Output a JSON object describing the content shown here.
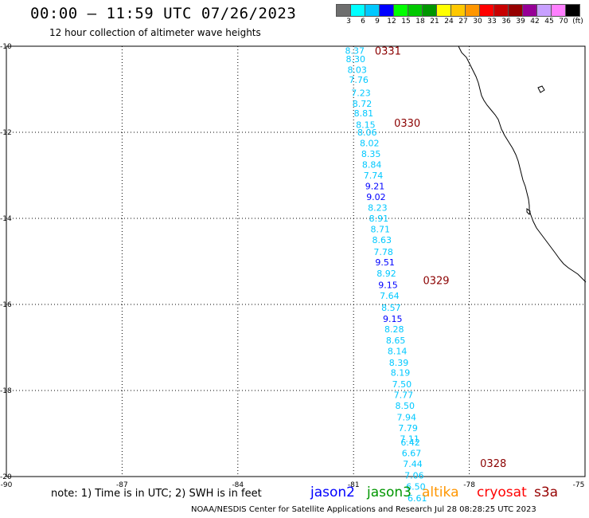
{
  "header": {
    "title": "00:00 – 11:59 UTC 07/26/2023",
    "subtitle": "12 hour collection of altimeter wave heights"
  },
  "colorbar": {
    "colors": [
      "#6e6e6e",
      "#00ffff",
      "#00c8ff",
      "#0000ff",
      "#00ff00",
      "#00c800",
      "#009600",
      "#ffff00",
      "#ffc800",
      "#ff9600",
      "#ff0000",
      "#c80000",
      "#960000",
      "#960096",
      "#c8a0ff",
      "#ff80ff",
      "#000000"
    ],
    "labels": [
      "3",
      "6",
      "9",
      "12",
      "15",
      "18",
      "21",
      "24",
      "27",
      "30",
      "33",
      "36",
      "39",
      "42",
      "45",
      "70",
      "(ft)"
    ]
  },
  "axes": {
    "y_labels": [
      "-10",
      "-12",
      "-14",
      "-16",
      "-18",
      "-20"
    ],
    "x_labels": [
      "-90",
      "-87",
      "-84",
      "-81",
      "-78",
      "-75"
    ]
  },
  "time_labels": [
    {
      "text": "0331",
      "lon": -80.45,
      "lat": -10.12
    },
    {
      "text": "0330",
      "lon": -79.95,
      "lat": -11.8
    },
    {
      "text": "0329",
      "lon": -79.2,
      "lat": -15.45
    },
    {
      "text": "0328",
      "lon": -77.72,
      "lat": -19.7
    }
  ],
  "track": [
    {
      "v": "8.37",
      "lon": -81.22,
      "lat": -10.1,
      "c": "#00c8ff"
    },
    {
      "v": "8.30",
      "lon": -81.2,
      "lat": -10.3,
      "c": "#00c8ff"
    },
    {
      "v": "8.03",
      "lon": -81.16,
      "lat": -10.55,
      "c": "#00c8ff"
    },
    {
      "v": "7.76",
      "lon": -81.12,
      "lat": -10.78,
      "c": "#00c8ff"
    },
    {
      "v": "7.23",
      "lon": -81.06,
      "lat": -11.08,
      "c": "#00c8ff"
    },
    {
      "v": "8.72",
      "lon": -81.03,
      "lat": -11.33,
      "c": "#00c8ff"
    },
    {
      "v": "8.81",
      "lon": -80.99,
      "lat": -11.56,
      "c": "#00c8ff"
    },
    {
      "v": "8.15",
      "lon": -80.94,
      "lat": -11.82,
      "c": "#00c8ff"
    },
    {
      "v": "8.06",
      "lon": -80.9,
      "lat": -12.0,
      "c": "#00c8ff"
    },
    {
      "v": "8.02",
      "lon": -80.84,
      "lat": -12.25,
      "c": "#00c8ff"
    },
    {
      "v": "8.35",
      "lon": -80.8,
      "lat": -12.5,
      "c": "#00c8ff"
    },
    {
      "v": "8.84",
      "lon": -80.78,
      "lat": -12.75,
      "c": "#00c8ff"
    },
    {
      "v": "7.74",
      "lon": -80.74,
      "lat": -13.0,
      "c": "#00c8ff"
    },
    {
      "v": "9.21",
      "lon": -80.7,
      "lat": -13.25,
      "c": "#0000ff"
    },
    {
      "v": "9.02",
      "lon": -80.67,
      "lat": -13.5,
      "c": "#0000ff"
    },
    {
      "v": "8.23",
      "lon": -80.63,
      "lat": -13.75,
      "c": "#00c8ff"
    },
    {
      "v": "8.91",
      "lon": -80.6,
      "lat": -14.0,
      "c": "#00c8ff"
    },
    {
      "v": "8.71",
      "lon": -80.56,
      "lat": -14.25,
      "c": "#00c8ff"
    },
    {
      "v": "8.63",
      "lon": -80.52,
      "lat": -14.5,
      "c": "#00c8ff"
    },
    {
      "v": "7.78",
      "lon": -80.48,
      "lat": -14.78,
      "c": "#00c8ff"
    },
    {
      "v": "9.51",
      "lon": -80.44,
      "lat": -15.02,
      "c": "#0000ff"
    },
    {
      "v": "8.92",
      "lon": -80.4,
      "lat": -15.28,
      "c": "#00c8ff"
    },
    {
      "v": "9.15",
      "lon": -80.36,
      "lat": -15.55,
      "c": "#0000ff"
    },
    {
      "v": "7.64",
      "lon": -80.32,
      "lat": -15.8,
      "c": "#00c8ff"
    },
    {
      "v": "8.57",
      "lon": -80.28,
      "lat": -16.07,
      "c": "#00c8ff"
    },
    {
      "v": "9.15",
      "lon": -80.24,
      "lat": -16.33,
      "c": "#0000ff"
    },
    {
      "v": "8.28",
      "lon": -80.2,
      "lat": -16.57,
      "c": "#00c8ff"
    },
    {
      "v": "8.65",
      "lon": -80.16,
      "lat": -16.83,
      "c": "#00c8ff"
    },
    {
      "v": "8.14",
      "lon": -80.12,
      "lat": -17.08,
      "c": "#00c8ff"
    },
    {
      "v": "8.39",
      "lon": -80.08,
      "lat": -17.35,
      "c": "#00c8ff"
    },
    {
      "v": "8.19",
      "lon": -80.04,
      "lat": -17.58,
      "c": "#00c8ff"
    },
    {
      "v": "7.50",
      "lon": -80.0,
      "lat": -17.85,
      "c": "#00c8ff"
    },
    {
      "v": "7.77",
      "lon": -79.96,
      "lat": -18.1,
      "c": "#00c8ff"
    },
    {
      "v": "8.50",
      "lon": -79.92,
      "lat": -18.35,
      "c": "#00c8ff"
    },
    {
      "v": "7.94",
      "lon": -79.88,
      "lat": -18.62,
      "c": "#00c8ff"
    },
    {
      "v": "7.79",
      "lon": -79.84,
      "lat": -18.87,
      "c": "#00c8ff"
    },
    {
      "v": "7.11",
      "lon": -79.8,
      "lat": -19.12,
      "c": "#00c8ff"
    },
    {
      "v": "6.42",
      "lon": -79.78,
      "lat": -19.2,
      "c": "#00c8ff"
    },
    {
      "v": "6.67",
      "lon": -79.75,
      "lat": -19.45,
      "c": "#00c8ff"
    },
    {
      "v": "7.44",
      "lon": -79.72,
      "lat": -19.7,
      "c": "#00c8ff"
    },
    {
      "v": "7.06",
      "lon": -79.68,
      "lat": -19.97,
      "c": "#00c8ff"
    },
    {
      "v": "6.50",
      "lon": -79.64,
      "lat": -20.23,
      "c": "#00c8ff"
    },
    {
      "v": "6.61",
      "lon": -79.6,
      "lat": -20.5,
      "c": "#00c8ff"
    }
  ],
  "note": "note:  1) Time is in UTC;  2) SWH is in feet",
  "legend": [
    {
      "name": "jason2",
      "color": "#0000ff"
    },
    {
      "name": "jason3",
      "color": "#009600"
    },
    {
      "name": "altika",
      "color": "#ff9600"
    },
    {
      "name": "cryosat",
      "color": "#ff0000"
    },
    {
      "name": "s3a",
      "color": "#960000"
    }
  ],
  "credit": "NOAA/NESDIS Center for Satellite Applications and Research   Jul 28 08:28:25 UTC 2023"
}
